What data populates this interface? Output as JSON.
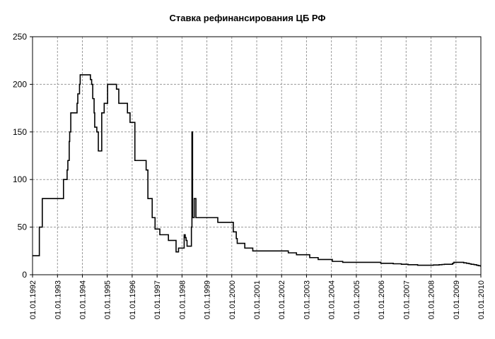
{
  "chart_data": {
    "type": "line",
    "title": "Ставка рефинансирования ЦБ РФ",
    "xlabel": "",
    "ylabel": "",
    "xlim": [
      "1992-01-01",
      "2010-01-01"
    ],
    "ylim": [
      0,
      250
    ],
    "grid": true,
    "legend": "none",
    "y_ticks": [
      0,
      50,
      100,
      150,
      200,
      250
    ],
    "x_tick_labels": [
      "01.01.1992",
      "01.01.1993",
      "01.01.1994",
      "01.01.1995",
      "01.01.1996",
      "01.01.1997",
      "01.01.1998",
      "01.01.1999",
      "01.01.2000",
      "01.01.2001",
      "01.01.2002",
      "01.01.2003",
      "01.01.2004",
      "01.01.2005",
      "01.01.2006",
      "01.01.2007",
      "01.01.2008",
      "01.01.2009",
      "01.01.2010"
    ],
    "x_tick_dates": [
      "1992-01-01",
      "1993-01-01",
      "1994-01-01",
      "1995-01-01",
      "1996-01-01",
      "1997-01-01",
      "1998-01-01",
      "1999-01-01",
      "2000-01-01",
      "2001-01-01",
      "2002-01-01",
      "2003-01-01",
      "2004-01-01",
      "2005-01-01",
      "2006-01-01",
      "2007-01-01",
      "2008-01-01",
      "2009-01-01",
      "2010-01-01"
    ],
    "series": [
      {
        "color": "#000000",
        "step": true,
        "points": [
          [
            "1992-01-01",
            20
          ],
          [
            "1992-04-10",
            50
          ],
          [
            "1992-05-23",
            80
          ],
          [
            "1993-03-30",
            100
          ],
          [
            "1993-05-22",
            110
          ],
          [
            "1993-06-02",
            120
          ],
          [
            "1993-06-22",
            140
          ],
          [
            "1993-06-29",
            150
          ],
          [
            "1993-07-15",
            170
          ],
          [
            "1993-10-15",
            180
          ],
          [
            "1993-10-26",
            190
          ],
          [
            "1993-11-20",
            200
          ],
          [
            "1993-11-30",
            210
          ],
          [
            "1994-04-29",
            205
          ],
          [
            "1994-05-17",
            200
          ],
          [
            "1994-06-02",
            185
          ],
          [
            "1994-06-22",
            170
          ],
          [
            "1994-07-01",
            155
          ],
          [
            "1994-08-01",
            150
          ],
          [
            "1994-08-23",
            130
          ],
          [
            "1994-10-12",
            170
          ],
          [
            "1994-11-17",
            180
          ],
          [
            "1995-01-06",
            200
          ],
          [
            "1995-05-16",
            195
          ],
          [
            "1995-06-19",
            180
          ],
          [
            "1995-10-24",
            170
          ],
          [
            "1995-12-01",
            160
          ],
          [
            "1996-02-10",
            120
          ],
          [
            "1996-07-24",
            110
          ],
          [
            "1996-08-19",
            80
          ],
          [
            "1996-10-21",
            60
          ],
          [
            "1996-12-02",
            48
          ],
          [
            "1997-02-10",
            42
          ],
          [
            "1997-06-16",
            36
          ],
          [
            "1997-10-06",
            24
          ],
          [
            "1997-11-11",
            28
          ],
          [
            "1998-02-02",
            42
          ],
          [
            "1998-02-17",
            39
          ],
          [
            "1998-03-02",
            36
          ],
          [
            "1998-03-16",
            30
          ],
          [
            "1998-05-19",
            50
          ],
          [
            "1998-05-27",
            150
          ],
          [
            "1998-06-05",
            60
          ],
          [
            "1998-06-29",
            80
          ],
          [
            "1998-07-24",
            60
          ],
          [
            "1999-06-10",
            55
          ],
          [
            "2000-01-24",
            45
          ],
          [
            "2000-03-07",
            38
          ],
          [
            "2000-03-21",
            33
          ],
          [
            "2000-07-10",
            28
          ],
          [
            "2000-11-04",
            25
          ],
          [
            "2002-04-09",
            23
          ],
          [
            "2002-08-07",
            21
          ],
          [
            "2003-02-17",
            18
          ],
          [
            "2003-06-21",
            16
          ],
          [
            "2004-01-15",
            14
          ],
          [
            "2004-06-15",
            13
          ],
          [
            "2005-12-26",
            12
          ],
          [
            "2006-06-26",
            11.5
          ],
          [
            "2006-10-23",
            11
          ],
          [
            "2007-01-29",
            10.5
          ],
          [
            "2007-06-19",
            10
          ],
          [
            "2008-02-04",
            10.25
          ],
          [
            "2008-04-29",
            10.5
          ],
          [
            "2008-06-10",
            10.75
          ],
          [
            "2008-07-14",
            11
          ],
          [
            "2008-11-12",
            12
          ],
          [
            "2008-12-01",
            13
          ],
          [
            "2009-04-24",
            12.5
          ],
          [
            "2009-06-05",
            12
          ],
          [
            "2009-07-13",
            11.5
          ],
          [
            "2009-08-10",
            11
          ],
          [
            "2009-09-15",
            10.75
          ],
          [
            "2009-09-30",
            10.5
          ],
          [
            "2009-10-30",
            10
          ],
          [
            "2009-11-25",
            9.5
          ],
          [
            "2009-12-28",
            9
          ],
          [
            "2010-01-01",
            9
          ]
        ]
      }
    ]
  }
}
